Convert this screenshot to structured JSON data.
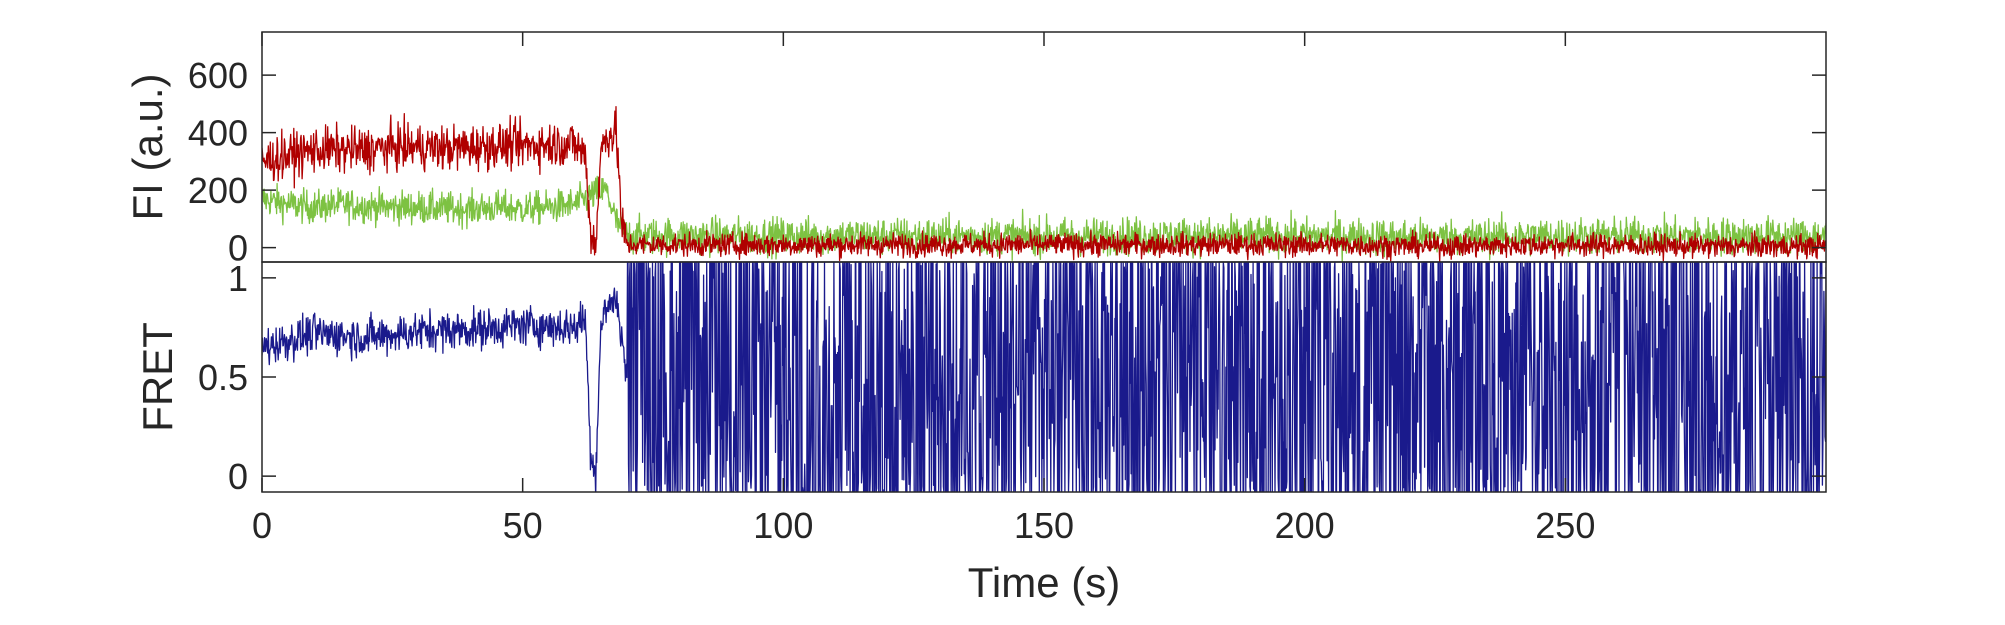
{
  "chart_data": [
    {
      "type": "line",
      "panel": "top",
      "title": "",
      "xlabel": "",
      "ylabel": "FI (a.u.)",
      "xlim": [
        0,
        300
      ],
      "ylim": [
        -50,
        750
      ],
      "yticks": [
        0,
        200,
        400,
        600
      ],
      "ytick_labels": [
        "0",
        "200",
        "400",
        "600"
      ],
      "grid": false,
      "legend": "none",
      "colors": {
        "donor": "#7dc242",
        "acceptor": "#b00000"
      },
      "series": [
        {
          "key": "donor",
          "color": "#7dc242",
          "x": [
            0,
            5,
            10,
            15,
            20,
            25,
            30,
            35,
            40,
            45,
            50,
            55,
            60,
            62,
            64,
            66,
            68,
            70,
            75,
            100,
            125,
            150,
            175,
            200,
            225,
            250,
            275,
            300
          ],
          "values": [
            170,
            150,
            140,
            150,
            145,
            140,
            140,
            135,
            135,
            140,
            135,
            140,
            150,
            170,
            190,
            200,
            90,
            40,
            40,
            40,
            40,
            40,
            40,
            40,
            35,
            40,
            40,
            40
          ]
        },
        {
          "key": "acceptor",
          "color": "#b00000",
          "x": [
            0,
            5,
            10,
            15,
            20,
            25,
            30,
            35,
            40,
            45,
            50,
            55,
            60,
            62,
            63,
            64,
            65,
            66,
            68,
            69,
            70,
            75,
            100,
            125,
            150,
            175,
            200,
            225,
            250,
            275,
            300
          ],
          "values": [
            300,
            320,
            340,
            340,
            340,
            350,
            350,
            345,
            350,
            355,
            355,
            360,
            360,
            320,
            60,
            10,
            330,
            390,
            400,
            80,
            10,
            10,
            10,
            10,
            10,
            10,
            10,
            5,
            10,
            5,
            5
          ]
        }
      ]
    },
    {
      "type": "line",
      "panel": "bottom",
      "title": "",
      "xlabel": "Time (s)",
      "ylabel": "FRET",
      "xlim": [
        0,
        300
      ],
      "ylim": [
        -0.08,
        1.08
      ],
      "xticks": [
        0,
        50,
        100,
        150,
        200,
        250
      ],
      "xtick_labels": [
        "0",
        "50",
        "100",
        "150",
        "200",
        "250"
      ],
      "yticks": [
        0,
        0.5,
        1
      ],
      "ytick_labels": [
        "0",
        "0.5",
        "1"
      ],
      "grid": false,
      "legend": "none",
      "colors": {
        "fret": "#1a1a8c"
      },
      "series": [
        {
          "key": "fret",
          "color": "#1a1a8c",
          "x": [
            0,
            10,
            20,
            30,
            40,
            50,
            60,
            62,
            63,
            64,
            65,
            66,
            68,
            70,
            300
          ],
          "values": [
            0.65,
            0.72,
            0.7,
            0.73,
            0.74,
            0.76,
            0.75,
            0.8,
            0.15,
            0.0,
            0.75,
            0.85,
            0.9,
            0.5,
            0.5
          ],
          "noisy_after_x": 70,
          "noisy_range": [
            -0.08,
            1.08
          ]
        }
      ]
    }
  ]
}
